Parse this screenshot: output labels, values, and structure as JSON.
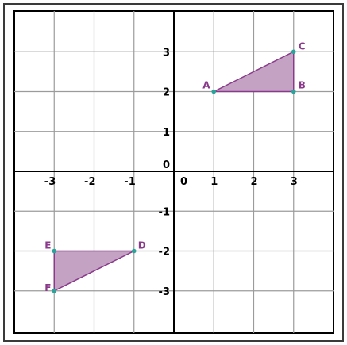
{
  "chart_data": {
    "type": "coordinate-grid",
    "xlim": [
      -4,
      4
    ],
    "ylim": [
      -4,
      4
    ],
    "grid": true,
    "x_tick_labels": [
      {
        "value": -3,
        "label": "-3"
      },
      {
        "value": -2,
        "label": "-2"
      },
      {
        "value": -1,
        "label": "-1"
      },
      {
        "value": 0,
        "label": "0"
      },
      {
        "value": 1,
        "label": "1"
      },
      {
        "value": 2,
        "label": "2"
      },
      {
        "value": 3,
        "label": "3"
      }
    ],
    "y_tick_labels": [
      {
        "value": 3,
        "label": "3"
      },
      {
        "value": 2,
        "label": "2"
      },
      {
        "value": 1,
        "label": "1"
      },
      {
        "value": 0,
        "label": "0"
      },
      {
        "value": -1,
        "label": "-1"
      },
      {
        "value": -2,
        "label": "-2"
      },
      {
        "value": -3,
        "label": "-3"
      }
    ],
    "triangles": [
      {
        "name": "ABC",
        "vertices": [
          {
            "label": "A",
            "x": 1,
            "y": 2
          },
          {
            "label": "B",
            "x": 3,
            "y": 2
          },
          {
            "label": "C",
            "x": 3,
            "y": 3
          }
        ]
      },
      {
        "name": "DEF",
        "vertices": [
          {
            "label": "D",
            "x": -1,
            "y": -2
          },
          {
            "label": "E",
            "x": -3,
            "y": -2
          },
          {
            "label": "F",
            "x": -3,
            "y": -3
          }
        ]
      }
    ]
  },
  "colors": {
    "fill": "#c4a2c4",
    "stroke": "#8a3a8a",
    "point": "#2aa39a",
    "label": "#8a3a8a",
    "grid": "#9b9b9b",
    "axis": "#000000",
    "frame": "#3a3a3a"
  }
}
